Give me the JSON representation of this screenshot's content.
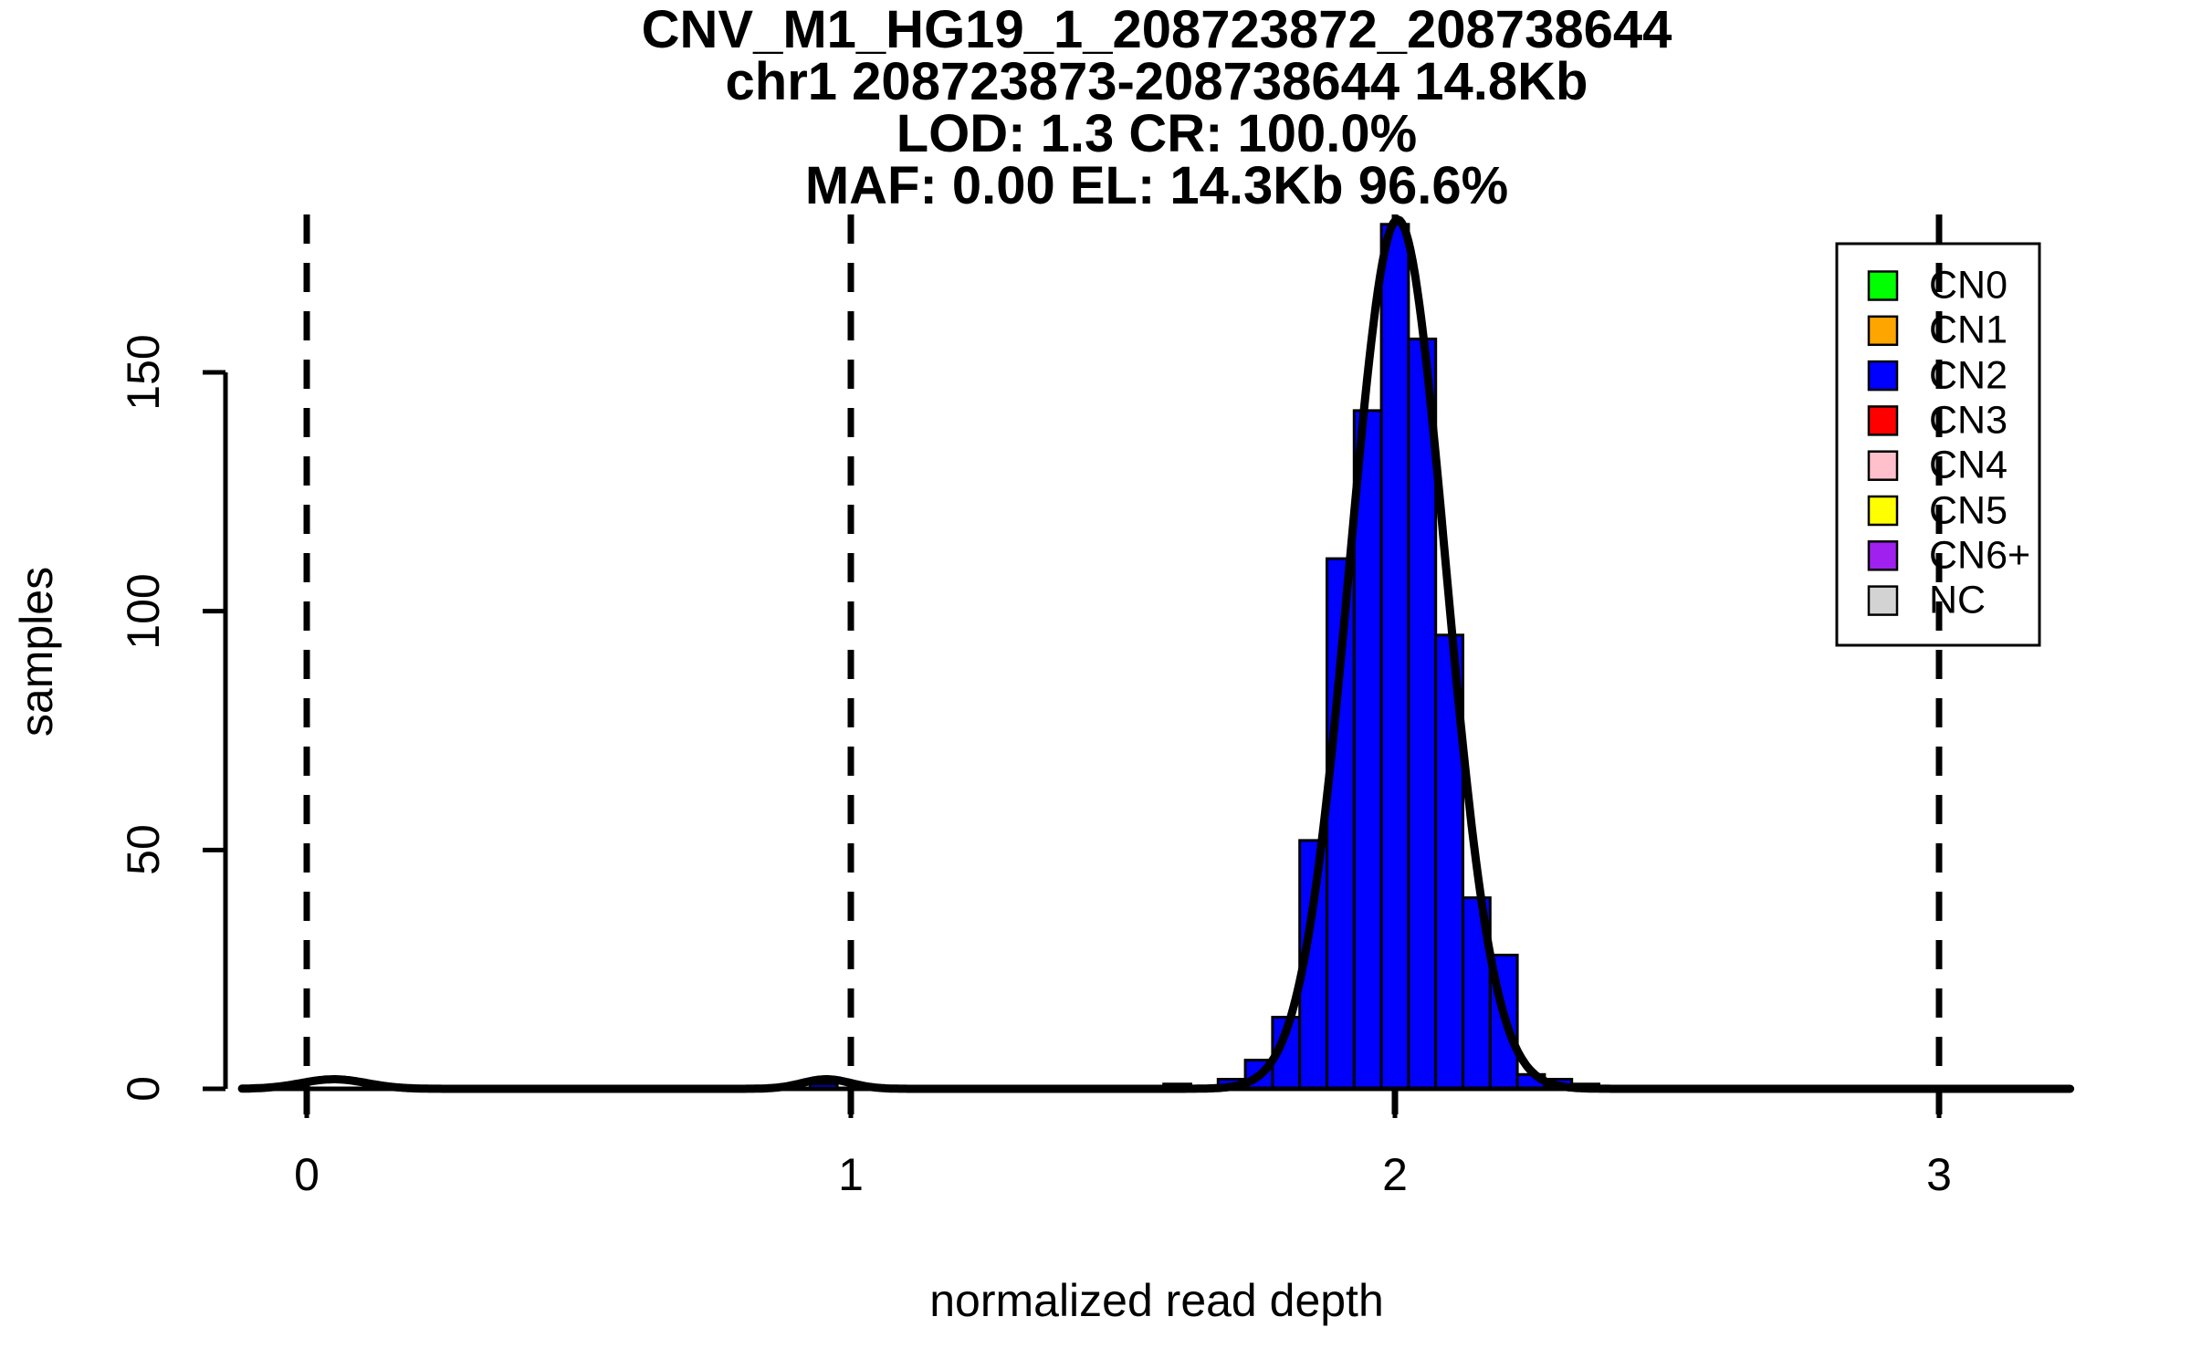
{
  "header": {
    "line1": "CNV_M1_HG19_1_208723872_208738644",
    "line2": "chr1 208723873-208738644 14.8Kb",
    "line3": "LOD: 1.3 CR: 100.0%",
    "line4": "MAF: 0.00 EL: 14.3Kb 96.6%"
  },
  "chart_data": {
    "type": "bar",
    "subtype": "histogram_with_density_curve",
    "title": "CNV_M1_HG19_1_208723872_208738644",
    "subtitle_lines": [
      "chr1 208723873-208738644 14.8Kb",
      "LOD: 1.3 CR: 100.0%",
      "MAF: 0.00 EL: 14.3Kb 96.6%"
    ],
    "xlabel": "normalized read depth",
    "ylabel": "samples",
    "x_ticks": [
      0,
      1,
      2,
      3
    ],
    "y_ticks": [
      0,
      50,
      100,
      150
    ],
    "xlim": [
      -0.119,
      3.245
    ],
    "ylim": [
      -5.5,
      183
    ],
    "grid": false,
    "bin_width": 0.05,
    "bars": [
      {
        "x0": 0.925,
        "x1": 0.975,
        "count": 1
      },
      {
        "x0": 1.575,
        "x1": 1.625,
        "count": 1
      },
      {
        "x0": 1.675,
        "x1": 1.725,
        "count": 2
      },
      {
        "x0": 1.725,
        "x1": 1.775,
        "count": 6
      },
      {
        "x0": 1.775,
        "x1": 1.825,
        "count": 15
      },
      {
        "x0": 1.825,
        "x1": 1.875,
        "count": 52
      },
      {
        "x0": 1.875,
        "x1": 1.925,
        "count": 111
      },
      {
        "x0": 1.925,
        "x1": 1.975,
        "count": 142
      },
      {
        "x0": 1.975,
        "x1": 2.025,
        "count": 181
      },
      {
        "x0": 2.025,
        "x1": 2.075,
        "count": 157
      },
      {
        "x0": 2.075,
        "x1": 2.125,
        "count": 95
      },
      {
        "x0": 2.125,
        "x1": 2.175,
        "count": 40
      },
      {
        "x0": 2.175,
        "x1": 2.225,
        "count": 28
      },
      {
        "x0": 2.225,
        "x1": 2.275,
        "count": 3
      },
      {
        "x0": 2.275,
        "x1": 2.325,
        "count": 2
      },
      {
        "x0": 2.325,
        "x1": 2.375,
        "count": 1
      }
    ],
    "density_curve": {
      "color": "#000000",
      "components": [
        {
          "amplitude": 182,
          "mean": 2.005,
          "sd": 0.088
        },
        {
          "amplitude": 2,
          "mean": 0.05,
          "sd": 0.06
        },
        {
          "amplitude": 2,
          "mean": 0.955,
          "sd": 0.045
        }
      ]
    },
    "dashed_lines_x": [
      0,
      1,
      2,
      3
    ],
    "bar_color": "#0000ff",
    "axis_color": "#000000",
    "legend": {
      "position": "top-right",
      "items": [
        {
          "label": "CN0",
          "color": "#00ff00"
        },
        {
          "label": "CN1",
          "color": "#ffa500"
        },
        {
          "label": "CN2",
          "color": "#0000ff"
        },
        {
          "label": "CN3",
          "color": "#ff0000"
        },
        {
          "label": "CN4",
          "color": "#ffc0cb"
        },
        {
          "label": "CN5",
          "color": "#ffff00"
        },
        {
          "label": "CN6+",
          "color": "#a020f0"
        },
        {
          "label": "NC",
          "color": "#d3d3d3"
        }
      ]
    }
  }
}
